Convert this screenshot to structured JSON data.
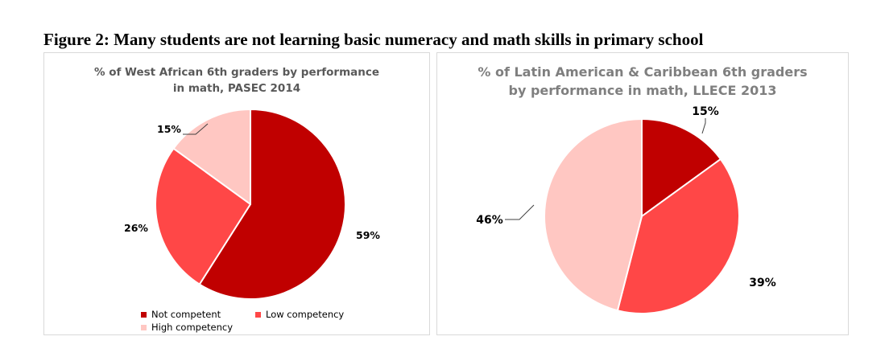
{
  "figure_title": "Figure 2: Many students are not learning basic numeracy and math skills in primary school",
  "chart_data": [
    {
      "type": "pie",
      "title": "% of West African 6th graders by performance in math, PASEC 2014",
      "categories": [
        "Not competent",
        "Low competency",
        "High competency"
      ],
      "values": [
        59,
        26,
        15
      ],
      "labels": [
        "59%",
        "26%",
        "15%"
      ],
      "colors": [
        "#c00000",
        "#ff4747",
        "#ffc7c2"
      ],
      "legend": {
        "position": "bottom",
        "items": [
          "Not competent",
          "Low competency",
          "High competency"
        ]
      }
    },
    {
      "type": "pie",
      "title": "% of Latin American & Caribbean 6th graders by performance in math, LLECE 2013",
      "categories": [
        "Not competent",
        "Low competency",
        "High competency"
      ],
      "values": [
        15,
        39,
        46
      ],
      "labels": [
        "15%",
        "39%",
        "46%"
      ],
      "colors": [
        "#c00000",
        "#ff4747",
        "#ffc7c2"
      ]
    }
  ]
}
